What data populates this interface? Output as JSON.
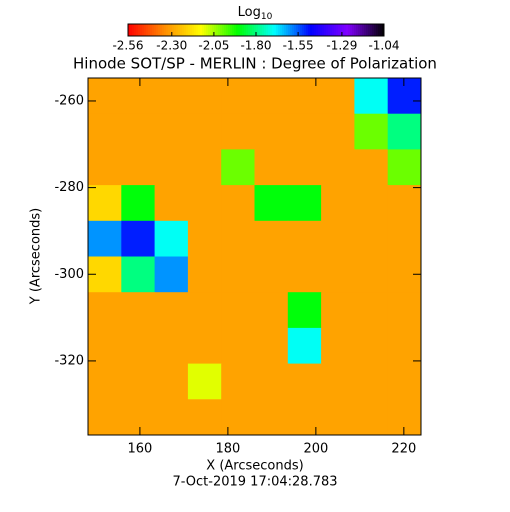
{
  "chart_data": {
    "type": "heatmap",
    "title": "Hinode SOT/SP - MERLIN : Degree of Polarization",
    "xlabel": "X (Arcseconds)",
    "ylabel": "Y (Arcseconds)",
    "footer": "7-Oct-2019 17:04:28.783",
    "colorbar_label": "Log",
    "colorbar_label_sub": "10",
    "colormap": [
      "#ff0000",
      "#ff8c00",
      "#ffff00",
      "#00ff00",
      "#00ffff",
      "#0000ff",
      "#8000ff",
      "#000000"
    ],
    "clim": [
      -2.56,
      -1.04
    ],
    "cticks": [
      -2.56,
      {
        "value": -2.3,
        "label": "-2.30"
      },
      -2.05,
      {
        "value": -1.8,
        "label": "-1.80"
      },
      -1.55,
      -1.29,
      -1.04
    ],
    "xlim": [
      148.2,
      223.9
    ],
    "xticks": [
      160,
      180,
      200,
      220
    ],
    "ylim": [
      -337.1,
      -254.7
    ],
    "yticks": [
      -320,
      -300,
      -280,
      -260
    ],
    "z": [
      [
        -2.3,
        -2.3,
        -2.3,
        -2.3,
        -2.3,
        -2.3,
        -2.3,
        -2.3,
        -1.7,
        -1.5
      ],
      [
        -2.3,
        -2.3,
        -2.3,
        -2.3,
        -2.3,
        -2.3,
        -2.3,
        -2.3,
        -2.0,
        -1.8
      ],
      [
        -2.3,
        -2.3,
        -2.3,
        -2.3,
        -2.0,
        -2.3,
        -2.3,
        -2.3,
        -2.3,
        -2.0
      ],
      [
        -2.2,
        -1.9,
        -2.3,
        -2.3,
        -2.3,
        -1.9,
        -1.9,
        -2.3,
        -2.3,
        -2.3
      ],
      [
        -1.6,
        -1.5,
        -1.7,
        -2.3,
        -2.3,
        -2.3,
        -2.3,
        -2.3,
        -2.3,
        -2.3
      ],
      [
        -2.2,
        -1.8,
        -1.6,
        -2.3,
        -2.3,
        -2.3,
        -2.3,
        -2.3,
        -2.3,
        -2.3
      ],
      [
        -2.3,
        -2.3,
        -2.3,
        -2.3,
        -2.3,
        -2.3,
        -1.9,
        -2.3,
        -2.3,
        -2.3
      ],
      [
        -2.3,
        -2.3,
        -2.3,
        -2.3,
        -2.3,
        -2.3,
        -1.7,
        -2.3,
        -2.3,
        -2.3
      ],
      [
        -2.3,
        -2.3,
        -2.3,
        -2.1,
        -2.3,
        -2.3,
        -2.3,
        -2.3,
        -2.3,
        -2.3
      ],
      [
        -2.3,
        -2.3,
        -2.3,
        -2.3,
        -2.3,
        -2.3,
        -2.3,
        -2.3,
        -2.3,
        -2.3
      ]
    ]
  }
}
